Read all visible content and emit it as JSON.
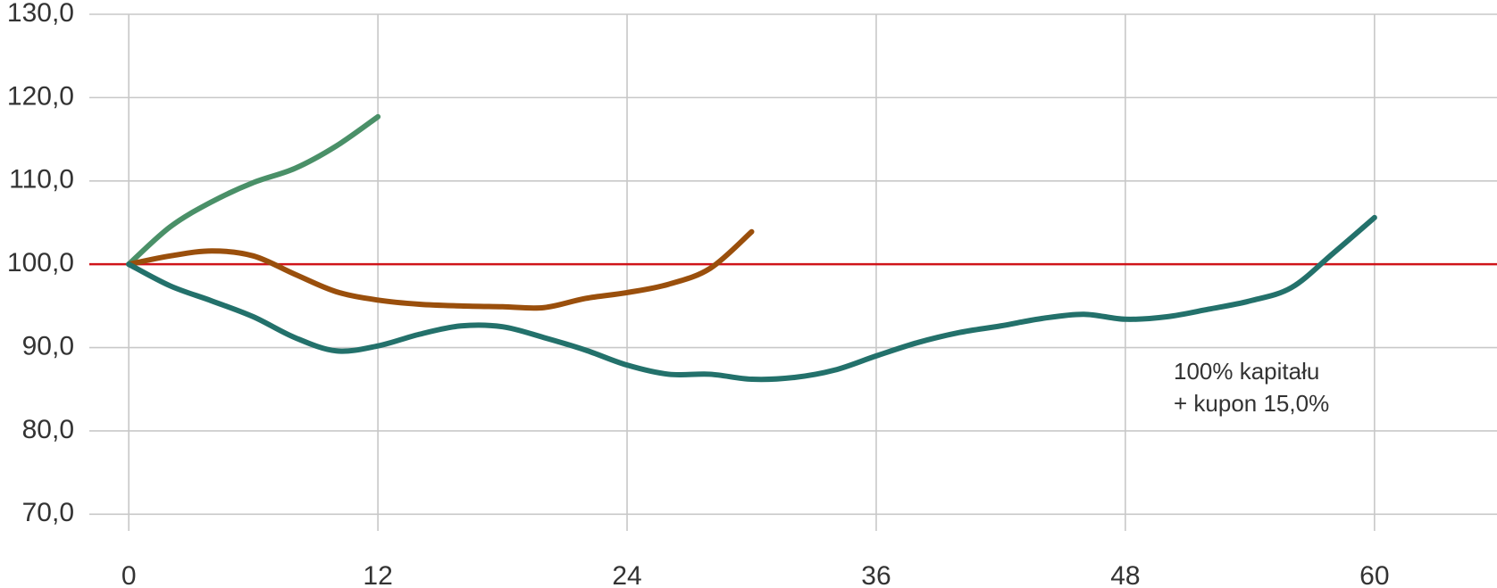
{
  "chart_data": {
    "type": "line",
    "xlim": [
      -1.9,
      65.9
    ],
    "xticks": [
      0,
      12,
      24,
      36,
      48,
      60
    ],
    "ylim": [
      68,
      130
    ],
    "yticks": [
      {
        "value": 70,
        "label": "70,0"
      },
      {
        "value": 80,
        "label": "80,0"
      },
      {
        "value": 90,
        "label": "90,0"
      },
      {
        "value": 100,
        "label": "100,0"
      },
      {
        "value": 110,
        "label": "110,0"
      },
      {
        "value": 120,
        "label": "120,0"
      },
      {
        "value": 130,
        "label": "130,0"
      }
    ],
    "grid": true,
    "hline": {
      "value": 100,
      "color": "#d0141a"
    },
    "annotations": [
      "100% kapitału",
      "+ kupon 15,0%"
    ],
    "series": [
      {
        "color": "#4a9068",
        "x": [
          0,
          2,
          4,
          6,
          8,
          10,
          12
        ],
        "values": [
          100,
          104.5,
          107.5,
          109.8,
          111.5,
          114.2,
          117.7
        ]
      },
      {
        "color": "#9a4f0c",
        "x": [
          0,
          2,
          4,
          6,
          8,
          10,
          12,
          14,
          16,
          18,
          20,
          22,
          24,
          26,
          28,
          30
        ],
        "values": [
          100,
          101,
          101.6,
          101,
          98.8,
          96.7,
          95.7,
          95.2,
          95,
          94.9,
          94.8,
          95.9,
          96.6,
          97.6,
          99.5,
          103.9
        ]
      },
      {
        "color": "#23716b",
        "x": [
          0,
          2,
          4,
          6,
          8,
          10,
          12,
          14,
          16,
          18,
          20,
          22,
          24,
          26,
          28,
          30,
          32,
          34,
          36,
          38,
          40,
          42,
          44,
          46,
          48,
          50,
          52,
          54,
          56,
          58,
          60
        ],
        "values": [
          100,
          97.4,
          95.6,
          93.7,
          91.2,
          89.6,
          90.2,
          91.6,
          92.6,
          92.5,
          91.2,
          89.7,
          87.9,
          86.8,
          86.8,
          86.2,
          86.4,
          87.3,
          89.0,
          90.6,
          91.8,
          92.6,
          93.5,
          94.0,
          93.4,
          93.7,
          94.6,
          95.6,
          97.2,
          101.3,
          105.6
        ]
      }
    ]
  }
}
